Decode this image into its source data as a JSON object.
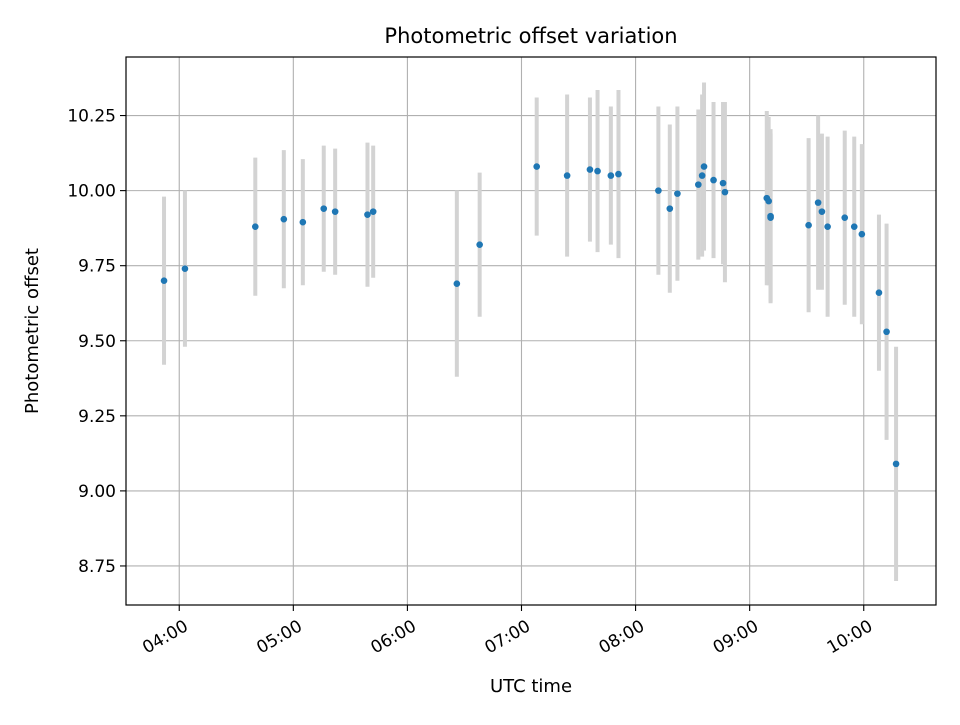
{
  "chart_data": {
    "type": "scatter",
    "title": "Photometric offset variation",
    "xlabel": "UTC time",
    "ylabel": "Photometric offset",
    "x_axis_kind": "time",
    "xlim": [
      "03:32",
      "10:38"
    ],
    "ylim": [
      8.62,
      10.445
    ],
    "xticks": [
      "04:00",
      "05:00",
      "06:00",
      "07:00",
      "08:00",
      "09:00",
      "10:00"
    ],
    "yticks": [
      8.75,
      9.0,
      9.25,
      9.5,
      9.75,
      10.0,
      10.25
    ],
    "ytick_labels": [
      "8.75",
      "9.00",
      "9.25",
      "9.50",
      "9.75",
      "10.00",
      "10.25"
    ],
    "grid": true,
    "legend": "none",
    "colors": {
      "marker": "#1f77b4",
      "errorbar": "#d3d3d3",
      "grid": "#b0b0b0",
      "axes": "#000000"
    },
    "points": [
      {
        "t": "03:52",
        "y": 9.7,
        "err": 0.28
      },
      {
        "t": "04:03",
        "y": 9.74,
        "err": 0.26
      },
      {
        "t": "04:40",
        "y": 9.88,
        "err": 0.23
      },
      {
        "t": "04:55",
        "y": 9.905,
        "err": 0.23
      },
      {
        "t": "05:05",
        "y": 9.895,
        "err": 0.21
      },
      {
        "t": "05:16",
        "y": 9.94,
        "err": 0.21
      },
      {
        "t": "05:22",
        "y": 9.93,
        "err": 0.21
      },
      {
        "t": "05:39",
        "y": 9.92,
        "err": 0.24
      },
      {
        "t": "05:42",
        "y": 9.93,
        "err": 0.22
      },
      {
        "t": "06:26",
        "y": 9.69,
        "err": 0.31
      },
      {
        "t": "06:38",
        "y": 9.82,
        "err": 0.24
      },
      {
        "t": "07:08",
        "y": 10.08,
        "err": 0.23
      },
      {
        "t": "07:24",
        "y": 10.05,
        "err": 0.27
      },
      {
        "t": "07:36",
        "y": 10.07,
        "err": 0.24
      },
      {
        "t": "07:40",
        "y": 10.065,
        "err": 0.27
      },
      {
        "t": "07:47",
        "y": 10.05,
        "err": 0.23
      },
      {
        "t": "07:51",
        "y": 10.055,
        "err": 0.28
      },
      {
        "t": "08:12",
        "y": 10.0,
        "err": 0.28
      },
      {
        "t": "08:18",
        "y": 9.94,
        "err": 0.28
      },
      {
        "t": "08:22",
        "y": 9.99,
        "err": 0.29
      },
      {
        "t": "08:33",
        "y": 10.02,
        "err": 0.25
      },
      {
        "t": "08:35",
        "y": 10.05,
        "err": 0.27
      },
      {
        "t": "08:36",
        "y": 10.08,
        "err": 0.28
      },
      {
        "t": "08:41",
        "y": 10.035,
        "err": 0.26
      },
      {
        "t": "08:46",
        "y": 10.025,
        "err": 0.27
      },
      {
        "t": "08:47",
        "y": 9.995,
        "err": 0.3
      },
      {
        "t": "09:09",
        "y": 9.975,
        "err": 0.29
      },
      {
        "t": "09:10",
        "y": 9.965,
        "err": 0.28
      },
      {
        "t": "09:11",
        "y": 9.91,
        "err": 0.28
      },
      {
        "t": "09:11",
        "y": 9.915,
        "err": 0.29
      },
      {
        "t": "09:31",
        "y": 9.885,
        "err": 0.29
      },
      {
        "t": "09:36",
        "y": 9.96,
        "err": 0.29
      },
      {
        "t": "09:38",
        "y": 9.93,
        "err": 0.26
      },
      {
        "t": "09:41",
        "y": 9.88,
        "err": 0.3
      },
      {
        "t": "09:50",
        "y": 9.91,
        "err": 0.29
      },
      {
        "t": "09:55",
        "y": 9.88,
        "err": 0.3
      },
      {
        "t": "09:59",
        "y": 9.855,
        "err": 0.3
      },
      {
        "t": "10:08",
        "y": 9.66,
        "err": 0.26
      },
      {
        "t": "10:12",
        "y": 9.53,
        "err": 0.36
      },
      {
        "t": "10:17",
        "y": 9.09,
        "err": 0.39
      }
    ]
  }
}
